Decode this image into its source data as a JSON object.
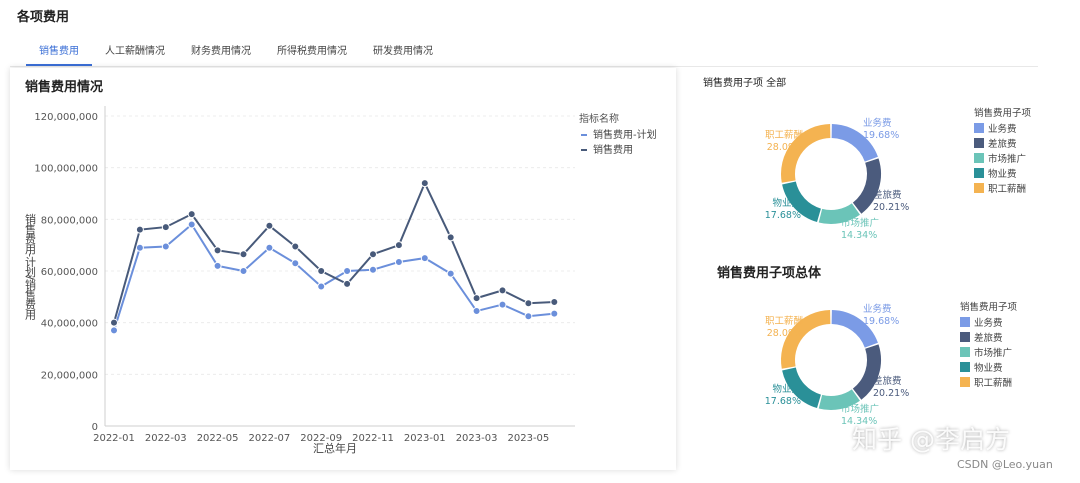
{
  "page": {
    "title": "各项费用"
  },
  "tabs": [
    {
      "label": "销售费用",
      "active": true
    },
    {
      "label": "人工薪酬情况",
      "active": false
    },
    {
      "label": "财务费用情况",
      "active": false
    },
    {
      "label": "所得税费用情况",
      "active": false
    },
    {
      "label": "研发费用情况",
      "active": false
    }
  ],
  "colors": {
    "accent": "#3b6fd6",
    "plan": "#6b8fdb",
    "actual": "#485a7a"
  },
  "line_card": {
    "title": "销售费用情况"
  },
  "chart_data": [
    {
      "type": "line",
      "title": "销售费用情况",
      "xlabel": "汇总年月",
      "ylabel": "销售费用-计划/销售费用",
      "legend_title": "指标名称",
      "legend_position": "top-right",
      "ylim": [
        0,
        120000000
      ],
      "yticks": [
        0,
        20000000,
        40000000,
        60000000,
        80000000,
        100000000,
        120000000
      ],
      "ytick_labels": [
        "0",
        "20,000,000",
        "40,000,000",
        "60,000,000",
        "80,000,000",
        "100,000,000",
        "120,000,000"
      ],
      "xtick_labels": [
        "2022-01",
        "2022-03",
        "2022-05",
        "2022-07",
        "2022-09",
        "2022-11",
        "2023-01",
        "2023-03",
        "2023-05"
      ],
      "grid": true,
      "x": [
        "2022-01",
        "2022-02",
        "2022-03",
        "2022-04",
        "2022-05",
        "2022-06",
        "2022-07",
        "2022-08",
        "2022-09",
        "2022-10",
        "2022-11",
        "2022-12",
        "2023-01",
        "2023-02",
        "2023-03",
        "2023-04",
        "2023-05",
        "2023-06"
      ],
      "series": [
        {
          "name": "销售费用-计划",
          "color": "#6b8fdb",
          "values": [
            37000000,
            69000000,
            69500000,
            78000000,
            62000000,
            60000000,
            69000000,
            63000000,
            54000000,
            60000000,
            60500000,
            63500000,
            65000000,
            59000000,
            44500000,
            47000000,
            42500000,
            43500000
          ]
        },
        {
          "name": "销售费用",
          "color": "#485a7a",
          "values": [
            40000000,
            76000000,
            77000000,
            82000000,
            68000000,
            66500000,
            77500000,
            69500000,
            60000000,
            55000000,
            66500000,
            70000000,
            94000000,
            73000000,
            49500000,
            52500000,
            47500000,
            48000000
          ]
        }
      ]
    },
    {
      "type": "pie",
      "title": "销售费用子项 全部",
      "legend_title": "销售费用子项",
      "legend_position": "right",
      "labels": [
        "业务费",
        "差旅费",
        "市场推广",
        "物业费",
        "职工薪酬"
      ],
      "values": [
        19.68,
        20.21,
        14.34,
        17.68,
        28.09
      ],
      "value_labels": [
        "19.68%",
        "20.21%",
        "14.34%",
        "17.68%",
        "28.09%"
      ],
      "colors": [
        "#7b9be6",
        "#4b5b7d",
        "#6bc4b8",
        "#2a9098",
        "#f4b351"
      ]
    },
    {
      "type": "pie",
      "title": "销售费用子项总体",
      "legend_title": "销售费用子项",
      "legend_position": "right",
      "labels": [
        "业务费",
        "差旅费",
        "市场推广",
        "物业费",
        "职工薪酬"
      ],
      "values": [
        19.68,
        20.21,
        14.34,
        17.68,
        28.09
      ],
      "value_labels": [
        "19.68%",
        "20.21%",
        "14.34%",
        "17.68%",
        "28.09%"
      ],
      "colors": [
        "#7b9be6",
        "#4b5b7d",
        "#6bc4b8",
        "#2a9098",
        "#f4b351"
      ]
    }
  ],
  "watermark": {
    "zhihu": "知乎 @李启方",
    "csdn": "CSDN @Leo.yuan"
  }
}
